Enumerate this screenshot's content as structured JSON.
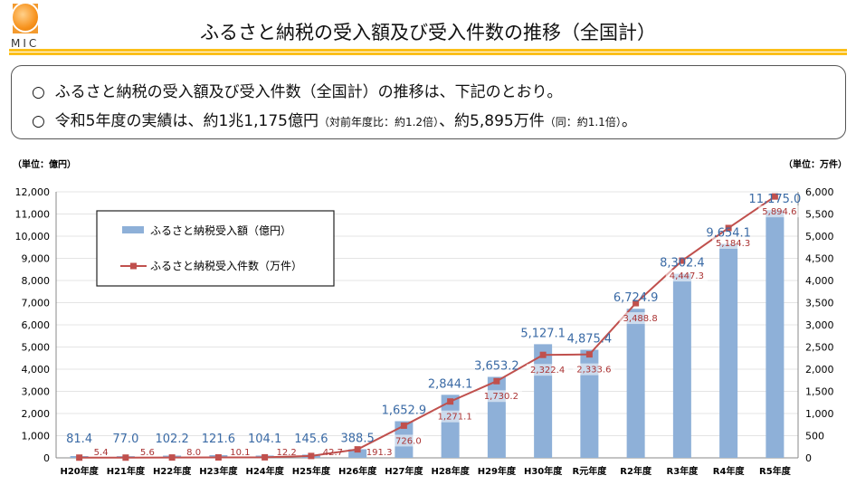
{
  "header": {
    "logo_text": "MIC",
    "title": "ふるさと納税の受入額及び受入件数の推移（全国計）"
  },
  "summary": {
    "bullet": "○",
    "line1": "ふるさと納税の受入額及び受入件数（全国計）の推移は、下記のとおり。",
    "line2_main": "令和5年度の実績は、約1兆1,175億円",
    "line2_note1": "（対前年度比：約1.2倍）",
    "line2_mid": "、約5,895万件",
    "line2_note2": "（同：約1.1倍）",
    "line2_end": "。"
  },
  "chart_data": {
    "type": "bar+line",
    "categories": [
      "H20年度",
      "H21年度",
      "H22年度",
      "H23年度",
      "H24年度",
      "H25年度",
      "H26年度",
      "H27年度",
      "H28年度",
      "H29年度",
      "H30年度",
      "R元年度",
      "R2年度",
      "R3年度",
      "R4年度",
      "R5年度"
    ],
    "series": [
      {
        "name": "ふるさと納税受入額（億円）",
        "type": "bar",
        "axis": "left",
        "color": "#8eb0d8",
        "label_color": "#3a6aa5",
        "values": [
          81.4,
          77.0,
          102.2,
          121.6,
          104.1,
          145.6,
          388.5,
          1652.9,
          2844.1,
          3653.2,
          5127.1,
          4875.4,
          6724.9,
          8302.4,
          9654.1,
          11175.0
        ]
      },
      {
        "name": "ふるさと納税受入件数（万件）",
        "type": "line",
        "axis": "right",
        "color": "#c0504d",
        "values": [
          5.4,
          5.6,
          8.0,
          10.1,
          12.2,
          42.7,
          191.3,
          726.0,
          1271.1,
          1730.2,
          2322.4,
          2333.6,
          3488.8,
          4447.3,
          5184.3,
          5894.6
        ]
      }
    ],
    "left_axis": {
      "unit_label": "（単位：億円）",
      "range": [
        0,
        12000
      ],
      "ticks": [
        "0",
        "1,000",
        "2,000",
        "3,000",
        "4,000",
        "5,000",
        "6,000",
        "7,000",
        "8,000",
        "9,000",
        "10,000",
        "11,000",
        "12,000"
      ]
    },
    "right_axis": {
      "unit_label": "（単位：万件）",
      "range": [
        0,
        6000
      ],
      "ticks": [
        "0",
        "500",
        "1,000",
        "1,500",
        "2,000",
        "2,500",
        "3,000",
        "3,500",
        "4,000",
        "4,500",
        "5,000",
        "5,500",
        "6,000"
      ]
    },
    "bar_labels": [
      "81.4",
      "77.0",
      "102.2",
      "121.6",
      "104.1",
      "145.6",
      "388.5",
      "1,652.9",
      "2,844.1",
      "3,653.2",
      "5,127.1",
      "4,875.4",
      "6,724.9",
      "8,302.4",
      "9,654.1",
      "11,175.0"
    ],
    "line_labels": [
      "5.4",
      "5.6",
      "8.0",
      "10.1",
      "12.2",
      "42.7",
      "191.3",
      "726.0",
      "1,271.1",
      "1,730.2",
      "2,322.4",
      "2,333.6",
      "3,488.8",
      "4,447.3",
      "5,184.3",
      "5,894.6"
    ],
    "legend": "top-left",
    "grid": true
  }
}
